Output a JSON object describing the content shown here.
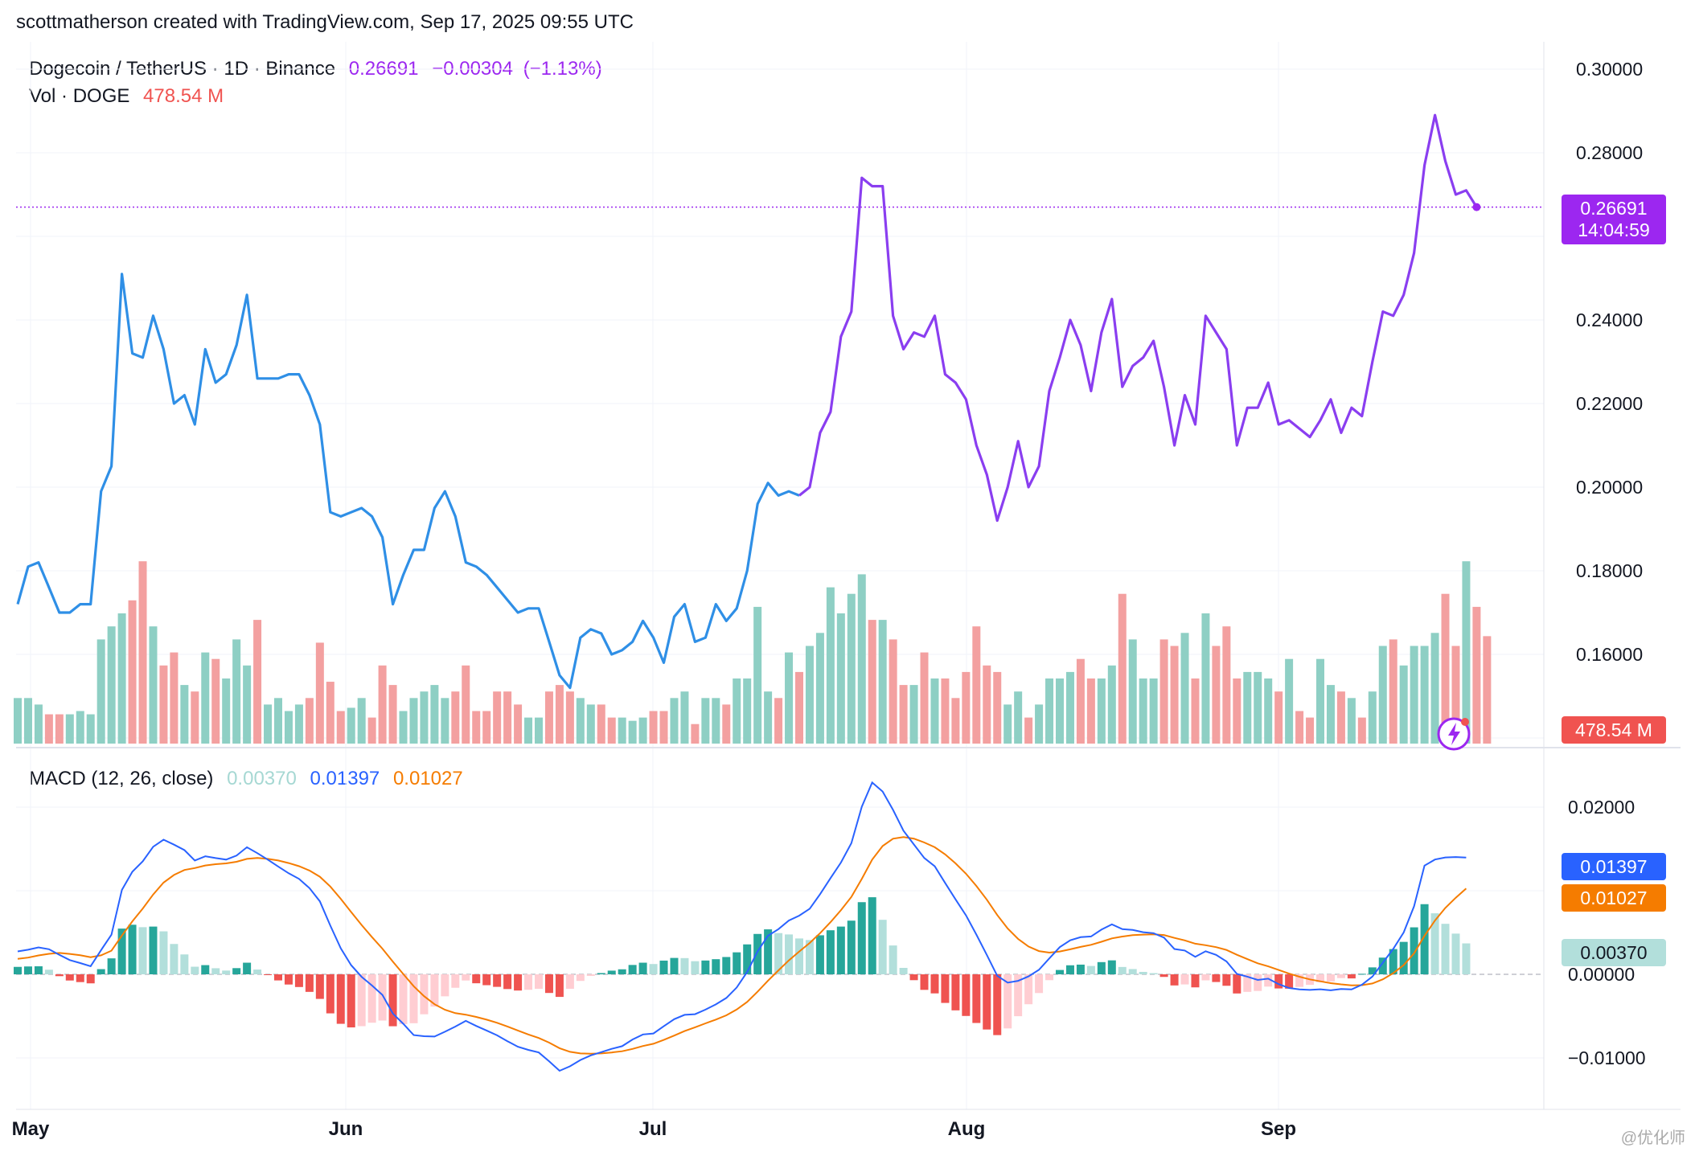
{
  "header": {
    "attribution": "scottmatherson created with TradingView.com, Sep 17, 2025 09:55 UTC"
  },
  "legend": {
    "symbol": "Dogecoin / TetherUS · 1D · Binance",
    "price": "0.26691",
    "change": "−0.00304",
    "change_pct": "(−1.13%)",
    "vol_label": "Vol · DOGE",
    "vol_value": "478.54 M",
    "macd_label": "MACD (12, 26, close)",
    "macd_hist": "0.00370",
    "macd_line": "0.01397",
    "macd_signal": "0.01027"
  },
  "badges": {
    "price": "0.26691",
    "countdown": "14:04:59",
    "volume": "478.54 M",
    "macd_line": "0.01397",
    "macd_signal": "0.01027",
    "macd_hist": "0.00370"
  },
  "watermark": "@优化师",
  "colors": {
    "price_down": "#2f8fe6",
    "price_up": "#8a3ef0",
    "vol_up": "#8ecfc4",
    "vol_down": "#f3a0a0",
    "macd_line": "#2962ff",
    "signal_line": "#f57c00",
    "hist_up_strong": "#26a69a",
    "hist_up_weak": "#b2dfdb",
    "hist_down_strong": "#ef5350",
    "hist_down_weak": "#ffcdd2",
    "badge_price": "#9c27f0",
    "badge_volume": "#f05350"
  },
  "chart_data": [
    {
      "type": "line",
      "title": "Dogecoin / TetherUS · 1D · Binance",
      "x_tick_labels": [
        "May",
        "Jun",
        "Jul",
        "Aug",
        "Sep"
      ],
      "y_tick_labels": [
        "0.30000",
        "0.28000",
        "0.24000",
        "0.22000",
        "0.20000",
        "0.18000",
        "0.16000"
      ],
      "ylim": [
        0.14,
        0.3
      ],
      "series": [
        {
          "values": [
            0.172,
            0.181,
            0.182,
            0.176,
            0.17,
            0.17,
            0.172,
            0.172,
            0.199,
            0.205,
            0.251,
            0.232,
            0.231,
            0.241,
            0.233,
            0.22,
            0.222,
            0.215,
            0.233,
            0.225,
            0.227,
            0.234,
            0.246,
            0.226,
            0.226,
            0.226,
            0.227,
            0.227,
            0.222,
            0.215,
            0.194,
            0.193,
            0.194,
            0.195,
            0.193,
            0.188,
            0.172,
            0.179,
            0.185,
            0.185,
            0.195,
            0.199,
            0.193,
            0.182,
            0.181,
            0.179,
            0.176,
            0.173,
            0.17,
            0.171,
            0.171,
            0.163,
            0.155,
            0.152,
            0.164,
            0.166,
            0.165,
            0.16,
            0.161,
            0.163,
            0.168,
            0.164,
            0.158,
            0.169,
            0.172,
            0.163,
            0.164,
            0.172,
            0.168,
            0.171,
            0.18,
            0.196,
            0.201,
            0.198,
            0.199,
            0.198,
            0.2,
            0.213,
            0.218,
            0.236,
            0.242,
            0.274,
            0.272,
            0.272,
            0.241,
            0.233,
            0.237,
            0.236,
            0.241,
            0.227,
            0.225,
            0.221,
            0.21,
            0.203,
            0.192,
            0.2,
            0.211,
            0.2,
            0.205,
            0.223,
            0.231,
            0.24,
            0.234,
            0.223,
            0.237,
            0.245,
            0.224,
            0.229,
            0.231,
            0.235,
            0.224,
            0.21,
            0.222,
            0.215,
            0.241,
            0.237,
            0.233,
            0.21,
            0.219,
            0.219,
            0.225,
            0.215,
            0.216,
            0.214,
            0.212,
            0.216,
            0.221,
            0.213,
            0.219,
            0.217,
            0.23,
            0.242,
            0.241,
            0.246,
            0.256,
            0.277,
            0.289,
            0.278,
            0.27,
            0.271,
            0.267
          ]
        }
      ]
    },
    {
      "type": "bar",
      "title": "Vol · DOGE",
      "series": [
        {
          "name": "Vol · DOGE",
          "values": [
            0.7,
            0.7,
            0.6,
            0.45,
            0.45,
            0.45,
            0.5,
            0.45,
            1.6,
            1.8,
            2.0,
            2.2,
            2.8,
            1.8,
            1.2,
            1.4,
            0.9,
            0.8,
            1.4,
            1.3,
            1.0,
            1.6,
            1.2,
            1.9,
            0.6,
            0.7,
            0.5,
            0.6,
            0.7,
            1.55,
            0.95,
            0.5,
            0.55,
            0.7,
            0.4,
            1.2,
            0.9,
            0.5,
            0.7,
            0.8,
            0.9,
            0.7,
            0.8,
            1.2,
            0.5,
            0.5,
            0.8,
            0.8,
            0.6,
            0.4,
            0.4,
            0.8,
            0.9,
            0.8,
            0.7,
            0.6,
            0.6,
            0.4,
            0.4,
            0.35,
            0.4,
            0.5,
            0.5,
            0.7,
            0.8,
            0.3,
            0.7,
            0.7,
            0.6,
            1.0,
            1.0,
            2.1,
            0.8,
            0.7,
            1.4,
            1.1,
            1.5,
            1.7,
            2.4,
            2.0,
            2.3,
            2.6,
            1.9,
            1.9,
            1.6,
            0.9,
            0.9,
            1.4,
            1.0,
            1.0,
            0.7,
            1.1,
            1.8,
            1.2,
            1.1,
            0.6,
            0.8,
            0.4,
            0.6,
            1.0,
            1.0,
            1.1,
            1.3,
            1.0,
            1.0,
            1.2,
            2.3,
            1.6,
            1.0,
            1.0,
            1.6,
            1.5,
            1.7,
            1.0,
            2.0,
            1.5,
            1.8,
            1.0,
            1.1,
            1.1,
            1.0,
            0.8,
            1.3,
            0.5,
            0.4,
            1.3,
            0.9,
            0.8,
            0.7,
            0.4,
            0.8,
            1.5,
            1.6,
            1.2,
            1.5,
            1.5,
            1.7,
            2.3,
            1.5,
            2.8,
            2.1,
            1.65
          ]
        }
      ]
    },
    {
      "type": "line",
      "title": "MACD (12, 26, close)",
      "y_tick_labels": [
        "0.02000",
        "0.00000",
        "−0.01000"
      ],
      "ylim": [
        -0.0113,
        0.0228
      ],
      "series": [
        {
          "values": [
            0.00274,
            0.00294,
            0.00322,
            0.003,
            0.00234,
            0.0017,
            0.00135,
            0.00097,
            0.00289,
            0.00474,
            0.0101,
            0.01227,
            0.01351,
            0.01526,
            0.01611,
            0.01551,
            0.01486,
            0.01362,
            0.01412,
            0.0139,
            0.01372,
            0.0142,
            0.0152,
            0.01449,
            0.01372,
            0.01289,
            0.01209,
            0.01141,
            0.01031,
            0.00873,
            0.00583,
            0.00311,
            0.0011,
            -0.0003,
            -0.00134,
            -0.00246,
            -0.00469,
            -0.00591,
            -0.00727,
            -0.0074,
            -0.00744,
            -0.00687,
            -0.00625,
            -0.00557,
            -0.00617,
            -0.00672,
            -0.0073,
            -0.008,
            -0.00866,
            -0.00904,
            -0.00935,
            -0.0104,
            -0.01154,
            -0.011,
            -0.01025,
            -0.00969,
            -0.00931,
            -0.00891,
            -0.0086,
            -0.0078,
            -0.00719,
            -0.00708,
            -0.00621,
            -0.00537,
            -0.00485,
            -0.00477,
            -0.00422,
            -0.0036,
            -0.00283,
            -0.00158,
            0.00028,
            0.00275,
            0.00462,
            0.0054,
            0.00643,
            0.00702,
            0.00785,
            0.00959,
            0.01151,
            0.01337,
            0.01568,
            0.02005,
            0.02294,
            0.02187,
            0.01967,
            0.01718,
            0.01553,
            0.01391,
            0.01292,
            0.01093,
            0.00896,
            0.00705,
            0.00475,
            0.00232,
            -0.00017,
            -0.00099,
            -0.00078,
            -0.00025,
            0.00054,
            0.0019,
            0.00325,
            0.00407,
            0.00444,
            0.00453,
            0.00535,
            0.00597,
            0.0054,
            0.00531,
            0.00504,
            0.00492,
            0.00439,
            0.00303,
            0.00285,
            0.0021,
            0.00276,
            0.00233,
            0.00154,
            5e-05,
            -0.00028,
            -0.00067,
            -0.00052,
            -0.00117,
            -0.00163,
            -0.0018,
            -0.00187,
            -0.00179,
            -0.00191,
            -0.00175,
            -0.00181,
            -0.00124,
            -0.00027,
            0.00139,
            0.00304,
            0.00501,
            0.00813,
            0.013,
            0.01373,
            0.01398,
            0.01403,
            0.01397
          ]
        },
        {
          "values": [
            0.00185,
            0.002,
            0.00226,
            0.00245,
            0.00256,
            0.00244,
            0.00228,
            0.00205,
            0.00227,
            0.00283,
            0.00463,
            0.00634,
            0.00787,
            0.00955,
            0.01097,
            0.01188,
            0.01248,
            0.01271,
            0.01302,
            0.01317,
            0.01327,
            0.01346,
            0.01381,
            0.01392,
            0.01381,
            0.01362,
            0.01331,
            0.01293,
            0.01241,
            0.01167,
            0.0105,
            0.00903,
            0.00745,
            0.0059,
            0.00445,
            0.00307,
            0.00152,
            4e-05,
            -0.00142,
            -0.00262,
            -0.00358,
            -0.00424,
            -0.00464,
            -0.00483,
            -0.0051,
            -0.00542,
            -0.0058,
            -0.00624,
            -0.00672,
            -0.00719,
            -0.00762,
            -0.00817,
            -0.00884,
            -0.00927,
            -0.00946,
            -0.0095,
            -0.00946,
            -0.00935,
            -0.0092,
            -0.00892,
            -0.00858,
            -0.00831,
            -0.00785,
            -0.00733,
            -0.00679,
            -0.00634,
            -0.00587,
            -0.00541,
            -0.0049,
            -0.00421,
            -0.0033,
            -0.00208,
            -0.00076,
            0.00047,
            0.00166,
            0.00273,
            0.00375,
            0.00492,
            0.00624,
            0.00766,
            0.00926,
            0.01142,
            0.01372,
            0.01535,
            0.01622,
            0.01641,
            0.01623,
            0.01577,
            0.0152,
            0.01435,
            0.01327,
            0.01203,
            0.01057,
            0.00892,
            0.0071,
            0.00548,
            0.00423,
            0.00333,
            0.00278,
            0.0026,
            0.00273,
            0.00299,
            0.00328,
            0.00353,
            0.00389,
            0.0043,
            0.00452,
            0.00468,
            0.00475,
            0.00478,
            0.0047,
            0.00436,
            0.00406,
            0.00366,
            0.00348,
            0.00325,
            0.00291,
            0.00234,
            0.00182,
            0.00132,
            0.00095,
            0.00052,
            9e-05,
            -0.00029,
            -0.00061,
            -0.00084,
            -0.00106,
            -0.0012,
            -0.00132,
            -0.0013,
            -0.0011,
            -0.0006,
            0.00013,
            0.00111,
            0.00251,
            0.00461,
            0.00643,
            0.00794,
            0.00916,
            0.01027
          ]
        },
        {
          "values": [
            0.00089,
            0.00094,
            0.00096,
            0.00055,
            -0.00022,
            -0.00074,
            -0.00093,
            -0.00108,
            0.00062,
            0.00191,
            0.00547,
            0.00593,
            0.00564,
            0.00571,
            0.00514,
            0.00363,
            0.00238,
            0.00091,
            0.0011,
            0.00073,
            0.00045,
            0.00074,
            0.00139,
            0.00057,
            -9e-05,
            -0.00073,
            -0.00122,
            -0.00152,
            -0.0021,
            -0.00294,
            -0.00467,
            -0.00592,
            -0.00635,
            -0.0062,
            -0.00579,
            -0.00553,
            -0.00621,
            -0.00595,
            -0.00585,
            -0.00478,
            -0.00386,
            -0.00263,
            -0.00161,
            -0.00074,
            -0.00107,
            -0.0013,
            -0.0015,
            -0.00176,
            -0.00194,
            -0.00185,
            -0.00173,
            -0.00223,
            -0.0027,
            -0.00173,
            -0.00079,
            -0.00019,
            0.00015,
            0.00044,
            0.0006,
            0.00112,
            0.00139,
            0.00123,
            0.00164,
            0.00196,
            0.00194,
            0.00157,
            0.00165,
            0.00181,
            0.00207,
            0.00263,
            0.00358,
            0.00483,
            0.00538,
            0.00493,
            0.00477,
            0.00429,
            0.0041,
            0.00467,
            0.00527,
            0.00571,
            0.00642,
            0.00863,
            0.00922,
            0.00652,
            0.00345,
            0.00077,
            -0.0007,
            -0.00186,
            -0.00228,
            -0.00342,
            -0.00431,
            -0.00498,
            -0.00582,
            -0.0066,
            -0.00727,
            -0.00647,
            -0.00501,
            -0.00358,
            -0.00224,
            -0.0007,
            0.00052,
            0.00108,
            0.00116,
            0.001,
            0.00146,
            0.00167,
            0.00088,
            0.00063,
            0.00029,
            0.00014,
            -0.00031,
            -0.00133,
            -0.00121,
            -0.00156,
            -0.00072,
            -0.00092,
            -0.00137,
            -0.00229,
            -0.0021,
            -0.00199,
            -0.00147,
            -0.00169,
            -0.00172,
            -0.00151,
            -0.00126,
            -0.00095,
            -0.00085,
            -0.00045,
            -0.00049,
            6e-05,
            0.00083,
            0.002,
            0.00302,
            0.00388,
            0.00562,
            0.00839,
            0.0073,
            0.00604,
            0.00487,
            0.0037
          ]
        }
      ]
    }
  ]
}
